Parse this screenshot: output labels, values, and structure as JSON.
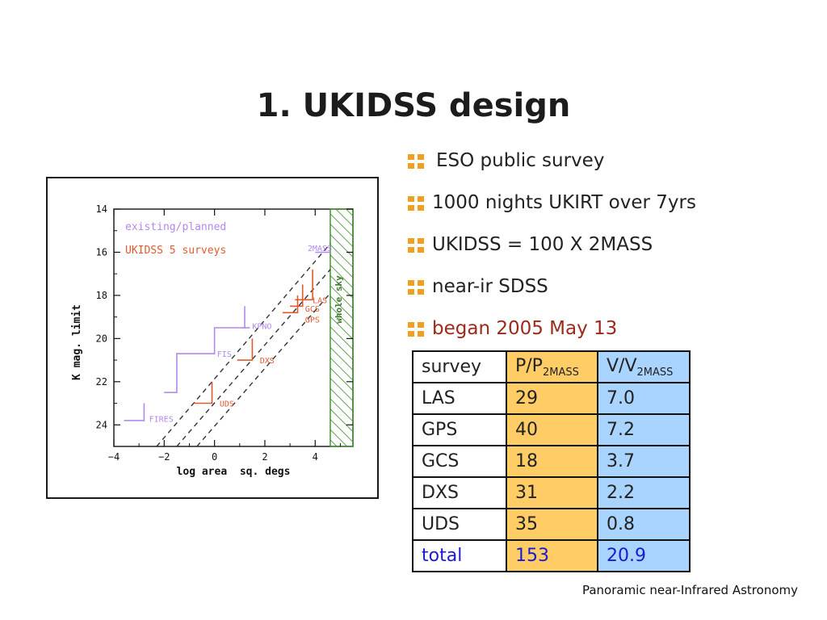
{
  "slide": {
    "title": "1. UKIDSS design",
    "footer": "Panoramic near-Infrared Astronomy"
  },
  "bullets": [
    {
      "text": "ESO public survey"
    },
    {
      "text": "1000 nights UKIRT over 7yrs"
    },
    {
      "text": "UKIDSS = 100 X 2MASS"
    },
    {
      "text": "near-ir SDSS"
    },
    {
      "text": "began 2005 May 13"
    }
  ],
  "colors": {
    "bullet_marker": "#f0a020",
    "accent_text": "#9b2a1c",
    "existing": "#b388f0",
    "ukidss": "#e05a30",
    "total_text": "#1a1ad0",
    "col_p": "#ffcc66",
    "col_v": "#a9d4ff"
  },
  "table": {
    "headers": [
      {
        "main": "survey",
        "sub": ""
      },
      {
        "main": "P/P",
        "sub": "2MASS"
      },
      {
        "main": "V/V",
        "sub": "2MASS"
      }
    ],
    "rows": [
      [
        "LAS",
        "29",
        "7.0"
      ],
      [
        "GPS",
        "40",
        "7.2"
      ],
      [
        "GCS",
        "18",
        "3.7"
      ],
      [
        "DXS",
        "31",
        "2.2"
      ],
      [
        "UDS",
        "35",
        "0.8"
      ],
      [
        "total",
        "153",
        "20.9"
      ]
    ]
  },
  "chart_data": {
    "type": "line",
    "xlabel": "log area  sq. degs",
    "ylabel": "K mag. limit",
    "xlim": [
      -4,
      5.5
    ],
    "ylim": [
      14,
      25
    ],
    "y_inverted": true,
    "xticks": [
      -4,
      -2,
      0,
      2,
      4
    ],
    "yticks": [
      14,
      16,
      18,
      20,
      22,
      24
    ],
    "legend": [
      {
        "text": "existing/planned",
        "color": "#b388f0"
      },
      {
        "text": "UKIDSS 5 surveys",
        "color": "#e05a30"
      }
    ],
    "region_label": "whole sky",
    "region_x": [
      4.6,
      5.5
    ],
    "diagonals": [
      {
        "style": "dashed",
        "points": [
          [
            -2.3,
            25
          ],
          [
            4.6,
            15.6
          ]
        ]
      },
      {
        "style": "dashed",
        "points": [
          [
            -1.5,
            25
          ],
          [
            4.6,
            16.8
          ]
        ]
      },
      {
        "style": "dashed",
        "points": [
          [
            -0.7,
            25
          ],
          [
            4.6,
            17.9
          ]
        ]
      }
    ],
    "existing_steps": [
      {
        "points": [
          [
            -3.6,
            23.8
          ],
          [
            -2.8,
            23.8
          ],
          [
            -2.8,
            23.0
          ]
        ]
      },
      {
        "points": [
          [
            -2.0,
            22.5
          ],
          [
            -1.5,
            22.5
          ],
          [
            -1.5,
            20.7
          ],
          [
            0.0,
            20.7
          ],
          [
            0.0,
            19.5
          ],
          [
            1.2,
            19.5
          ],
          [
            1.2,
            19.0
          ],
          [
            1.2,
            18.5
          ]
        ]
      },
      {
        "points": [
          [
            1.1,
            19.5
          ],
          [
            1.4,
            19.5
          ]
        ]
      },
      {
        "points": [
          [
            4.0,
            16.0
          ],
          [
            4.6,
            16.0
          ]
        ]
      }
    ],
    "ukidss_marks": [
      {
        "name": "UDS",
        "points": [
          [
            -0.8,
            23.0
          ],
          [
            -0.1,
            23.0
          ],
          [
            -0.1,
            22.0
          ]
        ]
      },
      {
        "name": "DXS",
        "points": [
          [
            0.9,
            21.0
          ],
          [
            1.5,
            21.0
          ],
          [
            1.5,
            20.0
          ]
        ]
      },
      {
        "name": "GCS",
        "points": [
          [
            2.7,
            18.8
          ],
          [
            3.3,
            18.8
          ],
          [
            3.3,
            18.0
          ]
        ]
      },
      {
        "name": "GPS",
        "points": [
          [
            3.0,
            18.5
          ],
          [
            3.5,
            18.5
          ],
          [
            3.5,
            17.5
          ]
        ]
      },
      {
        "name": "LAS",
        "points": [
          [
            3.2,
            18.2
          ],
          [
            3.9,
            18.2
          ],
          [
            3.9,
            16.8
          ]
        ]
      }
    ],
    "point_labels": [
      {
        "text": "2MASS",
        "x": 3.7,
        "y": 15.8,
        "color": "#b388f0"
      },
      {
        "text": "KPNO",
        "x": 1.5,
        "y": 19.4,
        "color": "#b388f0"
      },
      {
        "text": "FIS",
        "x": 0.1,
        "y": 20.7,
        "color": "#b388f0"
      },
      {
        "text": "FIRES",
        "x": -2.6,
        "y": 23.7,
        "color": "#b388f0"
      },
      {
        "text": "LAS",
        "x": 3.9,
        "y": 18.2,
        "color": "#e05a30"
      },
      {
        "text": "GCS",
        "x": 3.6,
        "y": 18.6,
        "color": "#e05a30"
      },
      {
        "text": "GPS",
        "x": 3.6,
        "y": 19.1,
        "color": "#e05a30"
      },
      {
        "text": "DXS",
        "x": 1.8,
        "y": 21.0,
        "color": "#e05a30"
      },
      {
        "text": "UDS",
        "x": 0.2,
        "y": 23.0,
        "color": "#e05a30"
      }
    ]
  }
}
